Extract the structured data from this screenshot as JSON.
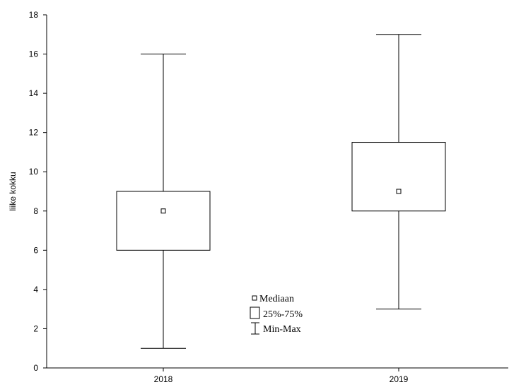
{
  "chart_data": {
    "type": "boxplot",
    "title": "",
    "xlabel": "",
    "ylabel": "liike kokku",
    "ylim": [
      0,
      18
    ],
    "yticks": [
      0,
      2,
      4,
      6,
      8,
      10,
      12,
      14,
      16,
      18
    ],
    "grid": false,
    "legend_position": "center",
    "categories": [
      "2018",
      "2019"
    ],
    "series": [
      {
        "category": "2018",
        "min": 1,
        "q1": 6,
        "median": 8,
        "q3": 9,
        "max": 16
      },
      {
        "category": "2019",
        "min": 3,
        "q1": 8,
        "median": 9,
        "q3": 11.5,
        "max": 17
      }
    ],
    "legend": [
      {
        "symbol": "median",
        "label": "Mediaan"
      },
      {
        "symbol": "box",
        "label": "25%-75%"
      },
      {
        "symbol": "whisker",
        "label": "Min-Max"
      }
    ]
  }
}
